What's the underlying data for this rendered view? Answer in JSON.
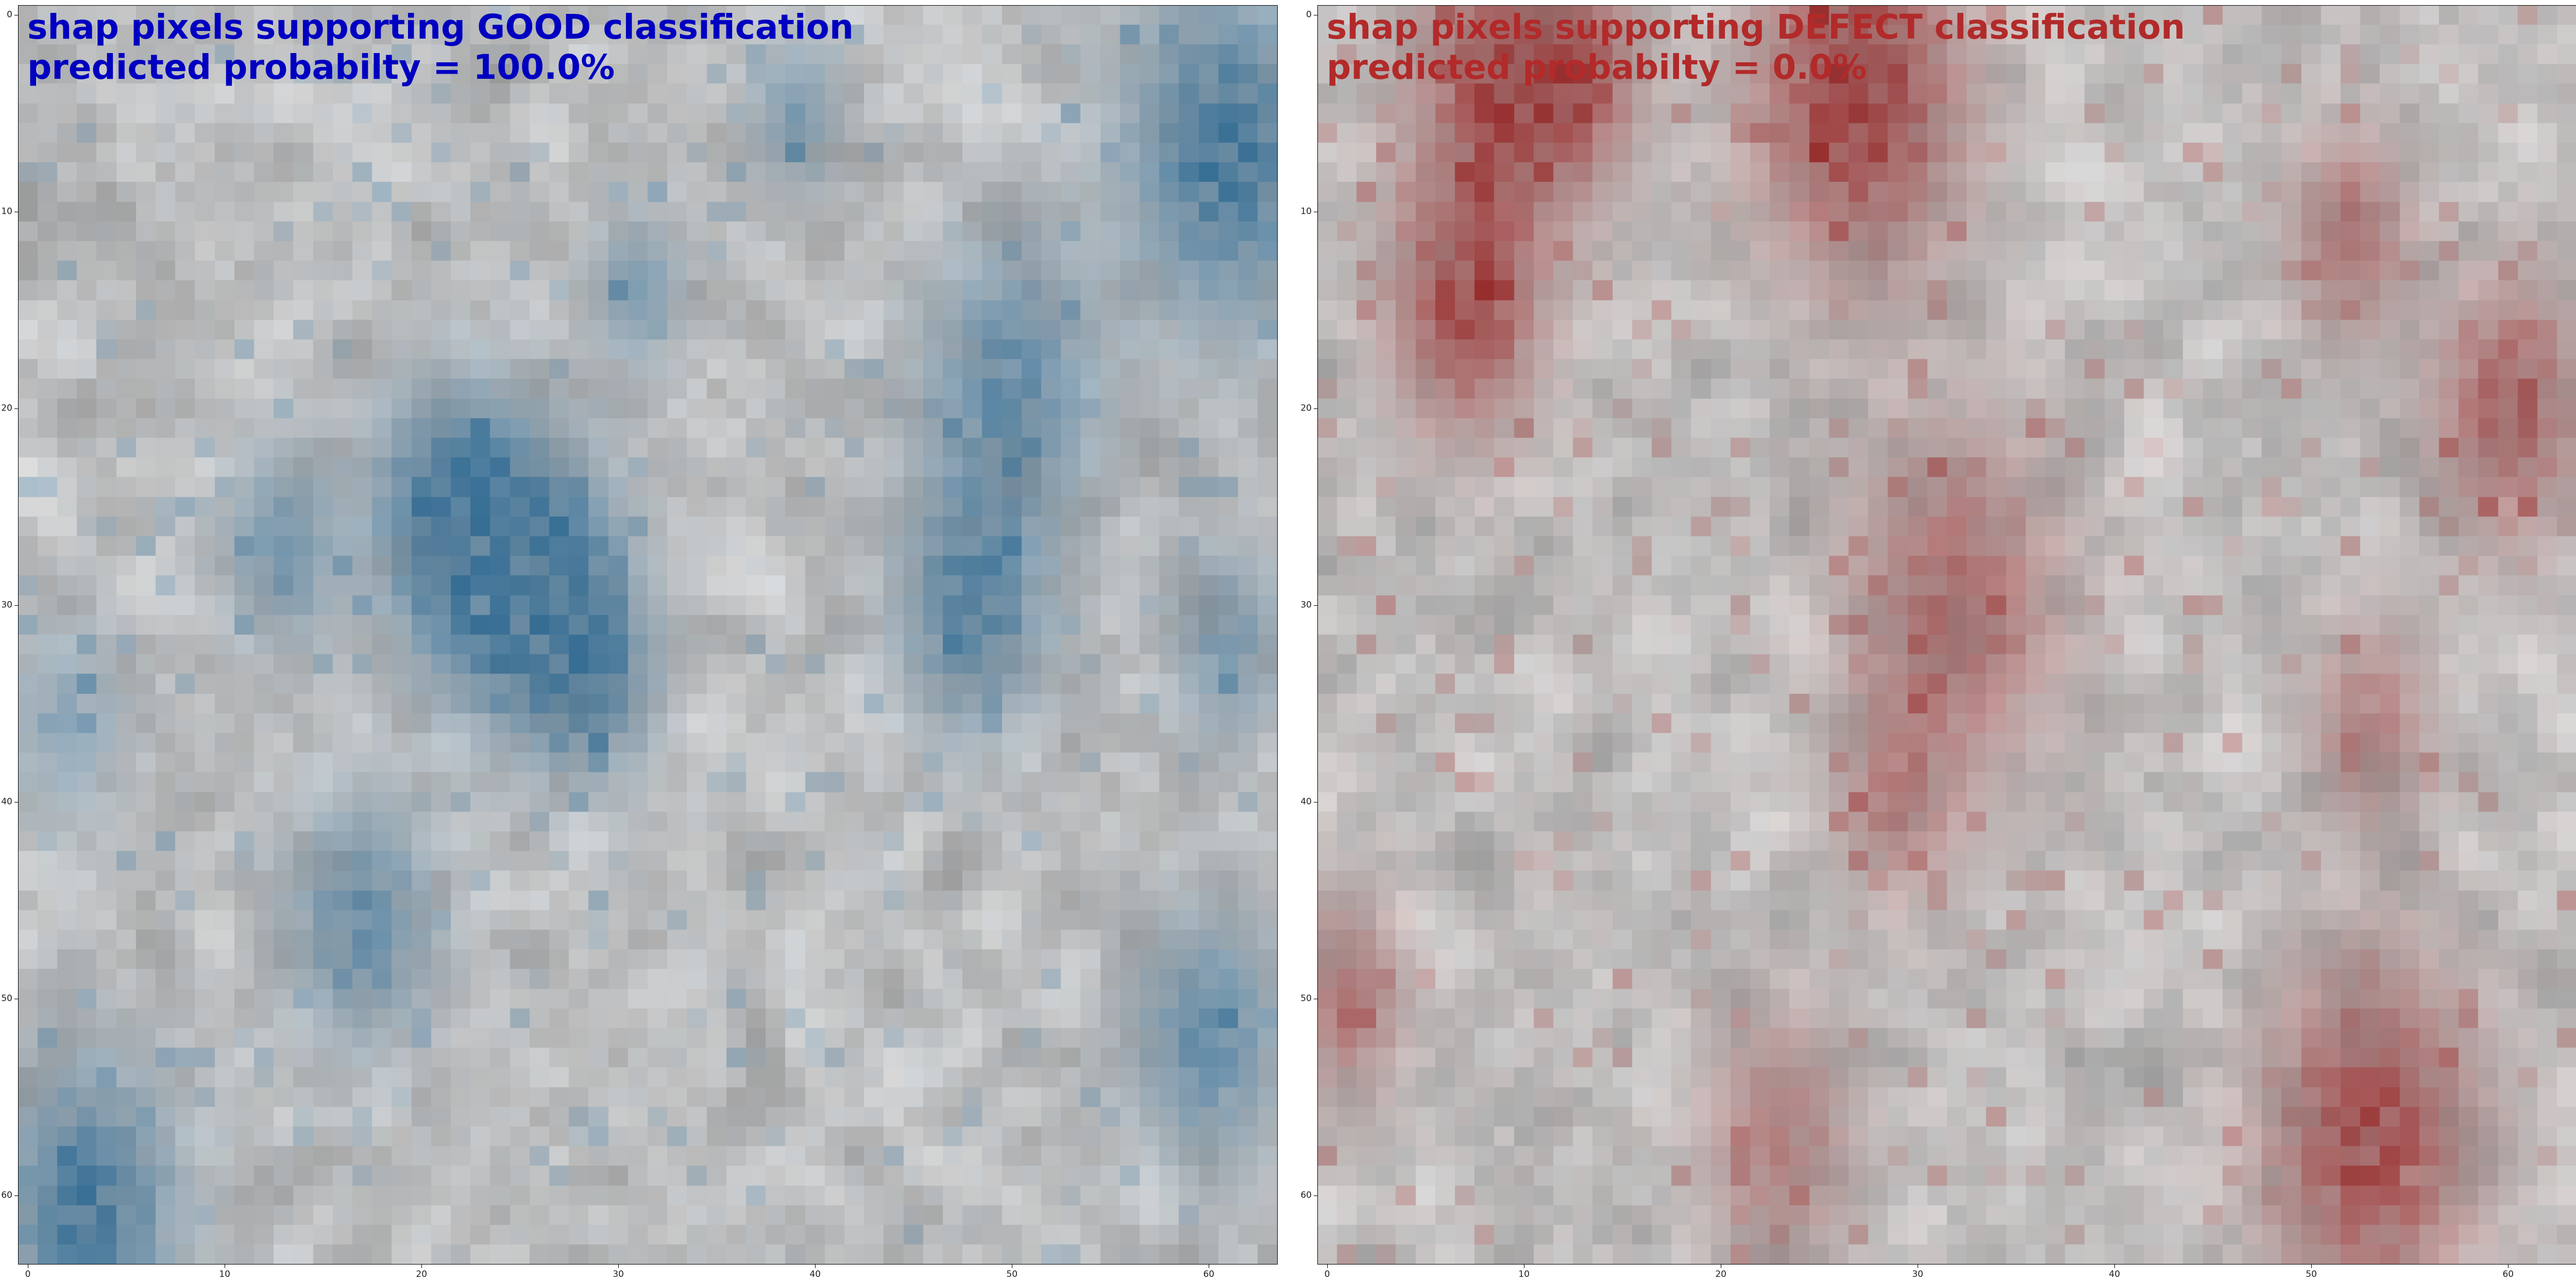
{
  "chart_data": [
    {
      "type": "heatmap",
      "title_line1": "shap pixels supporting GOOD classification",
      "title_line2": "predicted probabilty = 100.0%",
      "title_color": "#0000c0",
      "highlight_color": "#1f5f8b",
      "grid_size": [
        64,
        64
      ],
      "xlim": [
        -0.5,
        63.5
      ],
      "ylim": [
        -0.5,
        63.5
      ],
      "y_inverted": true,
      "xticks": [
        "0",
        "10",
        "20",
        "30",
        "40",
        "50",
        "60"
      ],
      "yticks": [
        "0",
        "10",
        "20",
        "30",
        "40",
        "50",
        "60"
      ],
      "seed": 1337,
      "hotspots": [
        {
          "x": 61,
          "y": 7,
          "r": 3.5,
          "w": 1.0
        },
        {
          "x": 24,
          "y": 28,
          "r": 3,
          "w": 0.95
        },
        {
          "x": 27,
          "y": 30,
          "r": 2.5,
          "w": 0.8
        },
        {
          "x": 21,
          "y": 25,
          "r": 2.5,
          "w": 0.7
        },
        {
          "x": 48,
          "y": 30,
          "r": 2.5,
          "w": 0.85
        },
        {
          "x": 50,
          "y": 19,
          "r": 3,
          "w": 0.75
        },
        {
          "x": 13,
          "y": 27,
          "r": 2,
          "w": 0.6
        },
        {
          "x": 3,
          "y": 61,
          "r": 3,
          "w": 1.0
        },
        {
          "x": 17,
          "y": 46,
          "r": 2.5,
          "w": 0.7
        },
        {
          "x": 60,
          "y": 52,
          "r": 2.5,
          "w": 0.75
        },
        {
          "x": 29,
          "y": 34,
          "r": 2,
          "w": 0.55
        },
        {
          "x": 39,
          "y": 5,
          "r": 1.5,
          "w": 0.55
        },
        {
          "x": 31,
          "y": 14,
          "r": 1.5,
          "w": 0.55
        },
        {
          "x": 2,
          "y": 36,
          "r": 2,
          "w": 0.45
        },
        {
          "x": 61,
          "y": 32,
          "r": 2,
          "w": 0.55
        }
      ]
    },
    {
      "type": "heatmap",
      "title_line1": "shap pixels supporting DEFECT classification",
      "title_line2": "predicted probabilty = 0.0%",
      "title_color": "#b22a2a",
      "highlight_color": "#8e1414",
      "grid_size": [
        64,
        64
      ],
      "xlim": [
        -0.5,
        63.5
      ],
      "ylim": [
        -0.5,
        63.5
      ],
      "y_inverted": true,
      "xticks": [
        "0",
        "10",
        "20",
        "30",
        "40",
        "50",
        "60"
      ],
      "yticks": [
        "0",
        "10",
        "20",
        "30",
        "40",
        "50",
        "60"
      ],
      "seed": 4242,
      "hotspots": [
        {
          "x": 27,
          "y": 4,
          "r": 3.5,
          "w": 1.0
        },
        {
          "x": 9,
          "y": 4,
          "r": 3,
          "w": 0.9
        },
        {
          "x": 7,
          "y": 15,
          "r": 2.5,
          "w": 0.85
        },
        {
          "x": 32,
          "y": 30,
          "r": 3.5,
          "w": 0.65
        },
        {
          "x": 53,
          "y": 57,
          "r": 3.5,
          "w": 0.9
        },
        {
          "x": 60,
          "y": 20,
          "r": 2.5,
          "w": 0.75
        },
        {
          "x": 52,
          "y": 11,
          "r": 2,
          "w": 0.6
        },
        {
          "x": 1,
          "y": 50,
          "r": 2,
          "w": 0.55
        },
        {
          "x": 23,
          "y": 57,
          "r": 2.5,
          "w": 0.5
        },
        {
          "x": 53,
          "y": 36,
          "r": 2,
          "w": 0.5
        },
        {
          "x": 13,
          "y": 3,
          "r": 2,
          "w": 0.6
        },
        {
          "x": 29,
          "y": 40,
          "r": 2,
          "w": 0.45
        }
      ]
    }
  ]
}
